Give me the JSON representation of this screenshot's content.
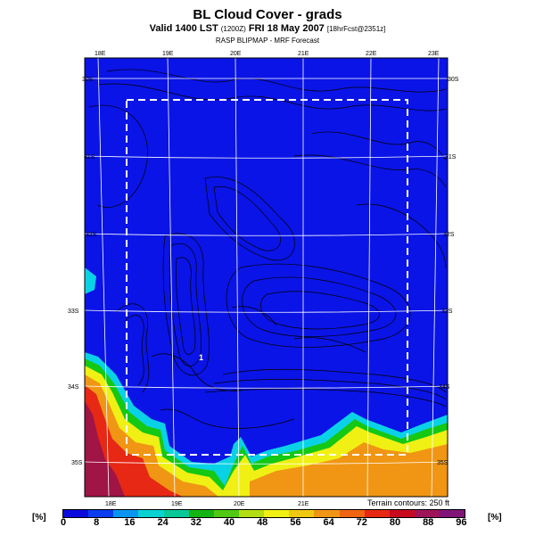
{
  "header": {
    "title": "BL Cloud Cover - grads",
    "valid_main": "Valid 1400 LST",
    "valid_small": "(1200Z)",
    "valid_date": "FRI 18 May 2007",
    "valid_fcst": "[18hrFcst@2351z]",
    "subtitle": "RASP BLIPMAP - MRF Forecast"
  },
  "map": {
    "lon_labels_top": [
      "18E",
      "19E",
      "20E",
      "21E",
      "22E",
      "23E"
    ],
    "lon_labels_bottom": [
      "18E",
      "19E",
      "20E",
      "21E"
    ],
    "lat_labels_left": [
      "30S",
      "31S",
      "32S",
      "33S",
      "34S",
      "35S"
    ],
    "lat_labels_right": [
      "30S",
      "31S",
      "32S",
      "33S",
      "34S",
      "35S"
    ],
    "point_marker": "1",
    "terrain_note": "Terrain contours: 250 ft",
    "colors": {
      "background": "#0a14e6",
      "contour": "#000000",
      "grid": "#ffffff",
      "box": "#ffffff"
    }
  },
  "legend": {
    "unit_left": "[%]",
    "unit_right": "[%]",
    "labels": [
      "0",
      "8",
      "16",
      "24",
      "32",
      "40",
      "48",
      "56",
      "64",
      "72",
      "80",
      "88",
      "96"
    ],
    "colors": [
      "#0a0adc",
      "#0a3cf0",
      "#0a96f0",
      "#0ad2d2",
      "#0ac896",
      "#14b414",
      "#50c814",
      "#b4dc14",
      "#f0f014",
      "#f0c814",
      "#f09614",
      "#f06414",
      "#e62814",
      "#c80a1e",
      "#a0145a",
      "#801478"
    ]
  }
}
